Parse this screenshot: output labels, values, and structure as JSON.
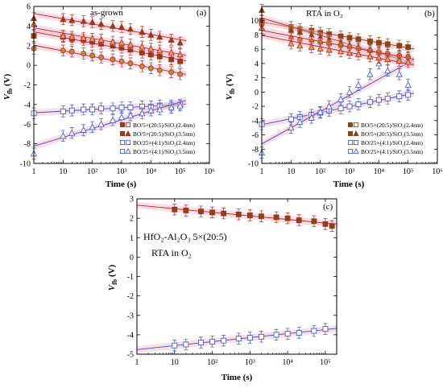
{
  "panels": [
    {
      "id": "a",
      "panel_label": "(a)",
      "title": "as-grown",
      "xlabel": "Time (s)",
      "ylabel": "V",
      "ylabel_sub": "fb",
      "ylabel_unit": " (V)",
      "xlim_log": [
        0,
        6
      ],
      "ylim": [
        -10,
        6
      ],
      "yticks": [
        -10,
        -8,
        -6,
        -4,
        -2,
        0,
        2,
        4,
        6
      ],
      "xticks": [
        "1",
        "10",
        "10²",
        "10³",
        "10⁴",
        "10⁵",
        "10⁶"
      ],
      "legend": [
        {
          "label": "BO/5×(20:5)/SiO₂(2.4nm)",
          "color": "#b22222",
          "fill": "#8b4513",
          "marker": "square"
        },
        {
          "label": "BO/5×(20:5)/SiO₂(3.5nm)",
          "color": "#b22222",
          "fill": "#8b4513",
          "marker": "triangle"
        },
        {
          "label": "BO/25×(4:1)/SiO₂(2.4nm)",
          "color": "#3a4fcf",
          "fill": "#ffffff",
          "marker": "square"
        },
        {
          "label": "BO/25×(4:1)/SiO₂(3.5nm)",
          "color": "#3a4fcf",
          "fill": "#ffffff",
          "marker": "triangle"
        }
      ]
    },
    {
      "id": "b",
      "panel_label": "(b)",
      "title": "RTA in O₂",
      "xlabel": "Time (s)",
      "ylabel": "V",
      "ylabel_sub": "fb",
      "ylabel_unit": " (V)",
      "xlim_log": [
        0,
        6
      ],
      "ylim": [
        -10,
        12
      ],
      "yticks": [
        -10,
        -8,
        -6,
        -4,
        -2,
        0,
        2,
        4,
        6,
        8,
        10
      ],
      "xticks": [
        "1",
        "10",
        "10²",
        "10³",
        "10⁴",
        "10⁵",
        "10⁶"
      ],
      "legend": [
        {
          "label": "BO/5×(20:5)/SiO₂(2.4nm)",
          "color": "#8b4513",
          "fill": "#8b4513",
          "marker": "square"
        },
        {
          "label": "BO/5×(20:5)/SiO₂(3.5nm)",
          "color": "#8b4513",
          "fill": "#8b4513",
          "marker": "triangle"
        },
        {
          "label": "BO/25×(4:1)/SiO₂(2.4nm)",
          "color": "#3a4fcf",
          "fill": "#ffffff",
          "marker": "square"
        },
        {
          "label": "BO/25×(4:1)/SiO₂(3.5nm)",
          "color": "#3a4fcf",
          "fill": "#ffffff",
          "marker": "triangle"
        }
      ]
    },
    {
      "id": "c",
      "panel_label": "(c)",
      "annotation_line1": "HfO₂-Al₂O₃ 5×(20:5)",
      "annotation_line2": "RTA in O₂",
      "xlabel": "Time (s)",
      "ylabel": "V",
      "ylabel_sub": "fb",
      "ylabel_unit": " (V)",
      "xlim_log": [
        0,
        5.3
      ],
      "ylim": [
        -5,
        3
      ],
      "yticks": [
        -5,
        -4,
        -3,
        -2,
        -1,
        0,
        1,
        2,
        3
      ],
      "xticks": [
        "1",
        "10",
        "10²",
        "10³",
        "10⁴",
        "10⁵"
      ]
    }
  ],
  "chart_data": [
    {
      "type": "scatter",
      "panel": "a",
      "title": "as-grown",
      "xlabel": "Time (s)",
      "ylabel": "Vfb (V)",
      "xscale": "log",
      "xlim": [
        1,
        1000000
      ],
      "ylim": [
        -10,
        6
      ],
      "legend_position": "bottom-right",
      "series": [
        {
          "name": "BO/5×(20:5)/SiO₂(2.4nm)",
          "x": [
            1,
            10,
            20,
            50,
            100,
            200,
            500,
            1000,
            2000,
            5000,
            10000,
            20000,
            50000,
            100000
          ],
          "y": [
            3.0,
            2.9,
            2.7,
            2.6,
            2.4,
            2.2,
            2.0,
            1.8,
            1.6,
            1.3,
            1.1,
            0.9,
            0.6,
            0.4
          ]
        },
        {
          "name": "BO/5×(20:5)/SiO₂(3.5nm)",
          "x": [
            1,
            10,
            20,
            50,
            100,
            200,
            500,
            1000,
            2000,
            5000,
            10000,
            20000,
            50000,
            100000
          ],
          "y": [
            4.8,
            4.7,
            4.6,
            4.5,
            4.4,
            4.2,
            4.0,
            3.9,
            3.7,
            3.4,
            3.1,
            2.9,
            2.6,
            2.3
          ]
        },
        {
          "name": "BO/25×(4:1)/SiO₂(2.4nm)",
          "x": [
            1,
            10,
            20,
            50,
            100,
            200,
            500,
            1000,
            2000,
            5000,
            10000,
            20000,
            50000,
            100000
          ],
          "y": [
            -4.9,
            -4.7,
            -4.6,
            -4.5,
            -4.5,
            -4.4,
            -4.4,
            -4.3,
            -4.3,
            -4.2,
            -4.2,
            -4.1,
            -4.1,
            -4.0
          ]
        },
        {
          "name": "BO/25×(4:1)/SiO₂(3.5nm)",
          "x": [
            1,
            10,
            20,
            50,
            100,
            200,
            500,
            1000,
            2000,
            5000,
            10000,
            20000,
            50000,
            100000
          ],
          "y": [
            -9.0,
            -7.2,
            -6.9,
            -6.6,
            -6.3,
            -6.0,
            -5.6,
            -5.3,
            -5.1,
            -4.9,
            -4.6,
            -4.5,
            -4.3,
            -4.1
          ]
        },
        {
          "name": "",
          "x": [
            1,
            10,
            20,
            50,
            100,
            200,
            500,
            1000,
            2000,
            5000,
            10000,
            20000,
            50000,
            100000
          ],
          "y": [
            1.7,
            1.5,
            1.4,
            1.2,
            1.0,
            0.8,
            0.6,
            0.4,
            0.2,
            -0.1,
            -0.3,
            -0.5,
            -0.7,
            -0.9
          ]
        },
        {
          "name": "",
          "x": [
            1,
            10,
            20,
            50,
            100,
            200,
            500,
            1000,
            2000,
            5000,
            10000,
            20000,
            50000,
            100000
          ],
          "y": [
            4.2,
            3.0,
            2.9,
            2.8,
            2.7,
            2.6,
            2.4,
            2.3,
            2.1,
            1.9,
            1.7,
            1.5,
            1.3,
            1.1
          ]
        }
      ]
    },
    {
      "type": "scatter",
      "panel": "b",
      "title": "RTA in O₂",
      "xlabel": "Time (s)",
      "ylabel": "Vfb (V)",
      "xscale": "log",
      "xlim": [
        1,
        1000000
      ],
      "ylim": [
        -10,
        12
      ],
      "legend_position": "bottom-right",
      "series": [
        {
          "name": "BO/5×(20:5)/SiO₂(2.4nm)",
          "x": [
            1,
            10,
            20,
            50,
            100,
            200,
            500,
            1000,
            2000,
            5000,
            10000,
            20000,
            50000,
            100000
          ],
          "y": [
            10.0,
            9.1,
            8.8,
            8.6,
            8.3,
            8.1,
            7.8,
            7.6,
            7.4,
            7.1,
            6.9,
            6.7,
            6.5,
            6.3
          ]
        },
        {
          "name": "BO/5×(20:5)/SiO₂(3.5nm)",
          "x": [
            1,
            10,
            20,
            50,
            100,
            200,
            500,
            1000,
            2000,
            5000,
            10000,
            20000,
            50000,
            100000
          ],
          "y": [
            11.5,
            8.7,
            8.4,
            8.0,
            7.7,
            7.4,
            7.0,
            6.6,
            6.3,
            5.9,
            5.5,
            5.2,
            4.8,
            4.5
          ]
        },
        {
          "name": "BO/25×(4:1)/SiO₂(2.4nm)",
          "x": [
            1,
            10,
            20,
            50,
            100,
            200,
            500,
            1000,
            2000,
            5000,
            10000,
            20000,
            50000,
            100000
          ],
          "y": [
            -4.5,
            -3.8,
            -3.5,
            -3.2,
            -2.9,
            -2.6,
            -2.3,
            -2.0,
            -1.7,
            -1.4,
            -1.1,
            -0.9,
            -0.6,
            -0.4
          ]
        },
        {
          "name": "BO/25×(4:1)/SiO₂(3.5nm)",
          "x": [
            1,
            10,
            20,
            50,
            100,
            200,
            500,
            1000,
            2000,
            5000,
            10000,
            20000,
            50000,
            100000
          ],
          "y": [
            -8.5,
            -5.0,
            -4.2,
            -3.6,
            -2.8,
            -2.0,
            -1.0,
            0.0,
            1.0,
            2.5,
            4.0,
            3.0,
            2.5,
            1.0
          ]
        },
        {
          "name": "",
          "x": [
            1,
            10,
            20,
            50,
            100,
            200,
            500,
            1000,
            2000,
            5000,
            10000,
            20000,
            50000,
            100000
          ],
          "y": [
            9.5,
            7.5,
            7.3,
            7.1,
            6.9,
            6.7,
            6.5,
            6.3,
            6.1,
            5.8,
            5.6,
            5.4,
            5.1,
            4.9
          ]
        },
        {
          "name": "",
          "x": [
            1,
            10,
            20,
            50,
            100,
            200,
            500,
            1000,
            2000,
            5000,
            10000,
            20000,
            50000,
            100000
          ],
          "y": [
            9.0,
            6.8,
            6.5,
            6.3,
            6.1,
            5.9,
            5.7,
            5.5,
            5.3,
            5.0,
            4.8,
            4.6,
            4.4,
            4.2
          ]
        }
      ]
    },
    {
      "type": "scatter",
      "panel": "c",
      "xlabel": "Time (s)",
      "ylabel": "Vfb (V)",
      "xscale": "log",
      "xlim": [
        1,
        200000
      ],
      "ylim": [
        -5,
        3
      ],
      "series": [
        {
          "x": [
            10,
            20,
            50,
            100,
            200,
            500,
            1000,
            2000,
            5000,
            10000,
            20000,
            50000,
            100000,
            150000
          ],
          "y": [
            2.45,
            2.4,
            2.35,
            2.3,
            2.25,
            2.2,
            2.15,
            2.1,
            2.05,
            2.0,
            1.9,
            1.85,
            1.7,
            1.6
          ]
        },
        {
          "x": [
            10,
            20,
            50,
            100,
            200,
            500,
            1000,
            2000,
            5000,
            10000,
            20000,
            50000,
            100000
          ],
          "y": [
            -4.55,
            -4.5,
            -4.4,
            -4.35,
            -4.3,
            -4.2,
            -4.15,
            -4.1,
            -4.0,
            -3.95,
            -3.9,
            -3.8,
            -3.7
          ]
        }
      ]
    }
  ]
}
